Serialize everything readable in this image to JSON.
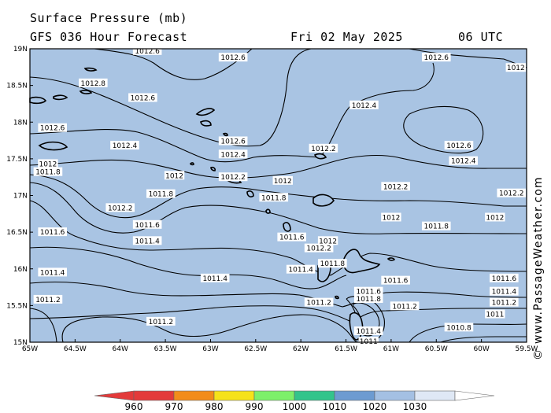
{
  "header": {
    "title": "Surface Pressure (mb)",
    "forecast": "GFS 036 Hour Forecast",
    "date": "Fri 02 May 2025",
    "time": "06 UTC"
  },
  "watermark": "© www.PassageWeather.com",
  "axes": {
    "lat_labels": [
      "19N",
      "18.5N",
      "18N",
      "17.5N",
      "17N",
      "16.5N",
      "16N",
      "15.5N",
      "15N"
    ],
    "lon_labels": [
      "65W",
      "64.5W",
      "64W",
      "63.5W",
      "63W",
      "62.5W",
      "62W",
      "61.5W",
      "61W",
      "60.5W",
      "60W",
      "59.5W"
    ]
  },
  "contour_labels": [
    {
      "text": "1012.6",
      "lon": -63.7,
      "lat": 18.97
    },
    {
      "text": "1012.6",
      "lon": -62.75,
      "lat": 18.88
    },
    {
      "text": "1012.6",
      "lon": -60.5,
      "lat": 18.88
    },
    {
      "text": "1012.8",
      "lon": -64.3,
      "lat": 18.53
    },
    {
      "text": "1012.6",
      "lon": -63.75,
      "lat": 18.33
    },
    {
      "text": "1012.4",
      "lon": -61.3,
      "lat": 18.23
    },
    {
      "text": "1012.6",
      "lon": -64.75,
      "lat": 17.92
    },
    {
      "text": "1012.6",
      "lon": -62.75,
      "lat": 17.74
    },
    {
      "text": "1012.4",
      "lon": -63.95,
      "lat": 17.68
    },
    {
      "text": "1012.6",
      "lon": -60.25,
      "lat": 17.68
    },
    {
      "text": "1012.2",
      "lon": -61.75,
      "lat": 17.64
    },
    {
      "text": "1012.4",
      "lon": -62.75,
      "lat": 17.56
    },
    {
      "text": "1012.4",
      "lon": -60.2,
      "lat": 17.47
    },
    {
      "text": "1012",
      "lon": -64.8,
      "lat": 17.43
    },
    {
      "text": "1011.8",
      "lon": -64.8,
      "lat": 17.32
    },
    {
      "text": "1012",
      "lon": -63.4,
      "lat": 17.27
    },
    {
      "text": "1012.2",
      "lon": -62.75,
      "lat": 17.25
    },
    {
      "text": "1012",
      "lon": -62.2,
      "lat": 17.2
    },
    {
      "text": "1012.2",
      "lon": -60.95,
      "lat": 17.12
    },
    {
      "text": "1012.2",
      "lon": -59.65,
      "lat": 17.03
    },
    {
      "text": "1011.8",
      "lon": -63.55,
      "lat": 17.02
    },
    {
      "text": "1011.8",
      "lon": -62.3,
      "lat": 16.97
    },
    {
      "text": "1012.2",
      "lon": -64.0,
      "lat": 16.83
    },
    {
      "text": "1012",
      "lon": -61.0,
      "lat": 16.7
    },
    {
      "text": "1012",
      "lon": -59.85,
      "lat": 16.7
    },
    {
      "text": "1011.6",
      "lon": -63.7,
      "lat": 16.6
    },
    {
      "text": "1011.8",
      "lon": -60.5,
      "lat": 16.58
    },
    {
      "text": "1011.6",
      "lon": -64.75,
      "lat": 16.5
    },
    {
      "text": "1011.6",
      "lon": -62.1,
      "lat": 16.43
    },
    {
      "text": "1012",
      "lon": -61.7,
      "lat": 16.38
    },
    {
      "text": "1011.4",
      "lon": -63.7,
      "lat": 16.38
    },
    {
      "text": "1012.2",
      "lon": -61.8,
      "lat": 16.28
    },
    {
      "text": "1011.8",
      "lon": -61.65,
      "lat": 16.07
    },
    {
      "text": "1011.4",
      "lon": -62.0,
      "lat": 15.99
    },
    {
      "text": "1011.4",
      "lon": -64.75,
      "lat": 15.95
    },
    {
      "text": "1011.4",
      "lon": -62.95,
      "lat": 15.87
    },
    {
      "text": "1011.6",
      "lon": -60.95,
      "lat": 15.84
    },
    {
      "text": "1011.6",
      "lon": -59.75,
      "lat": 15.87
    },
    {
      "text": "1011.6",
      "lon": -61.25,
      "lat": 15.69
    },
    {
      "text": "1011.4",
      "lon": -59.75,
      "lat": 15.69
    },
    {
      "text": "1011.8",
      "lon": -61.25,
      "lat": 15.59
    },
    {
      "text": "1011.2",
      "lon": -64.8,
      "lat": 15.58
    },
    {
      "text": "1011.2",
      "lon": -61.8,
      "lat": 15.54
    },
    {
      "text": "1011.2",
      "lon": -59.75,
      "lat": 15.54
    },
    {
      "text": "1011.2",
      "lon": -60.85,
      "lat": 15.49
    },
    {
      "text": "1011",
      "lon": -59.85,
      "lat": 15.38
    },
    {
      "text": "1011.2",
      "lon": -63.55,
      "lat": 15.28
    },
    {
      "text": "1010.8",
      "lon": -60.25,
      "lat": 15.2
    },
    {
      "text": "1011.4",
      "lon": -61.25,
      "lat": 15.15
    },
    {
      "text": "1011",
      "lon": -61.25,
      "lat": 15.01
    },
    {
      "text": "1012",
      "lon": -59.55,
      "lat": 18.74
    }
  ],
  "legend": {
    "ticks": [
      "960",
      "970",
      "980",
      "990",
      "1000",
      "1010",
      "1020",
      "1030"
    ],
    "colors": [
      "#e33a3a",
      "#f28c1a",
      "#f5e21a",
      "#7df06a",
      "#33c48b",
      "#6d9bd1",
      "#a4c0e3",
      "#dfe8f5"
    ]
  },
  "colors": {
    "sea": "#a9c4e3",
    "land": "#a9c4e3",
    "contour": "#000000",
    "frame": "#000000"
  }
}
